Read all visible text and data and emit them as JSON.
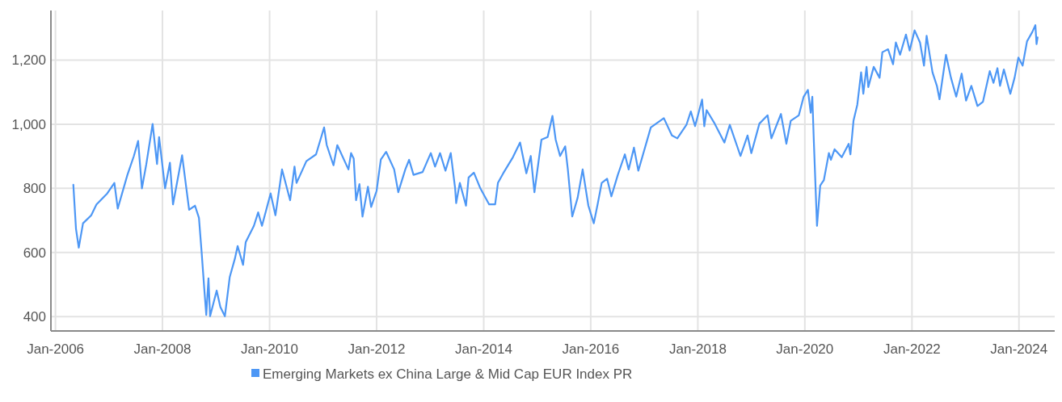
{
  "chart_data": {
    "type": "line",
    "legend": "bottom",
    "grid": true,
    "xlim": [
      "2005-12-01",
      "2024-09-01"
    ],
    "ylim": [
      355,
      1355
    ],
    "yticks": [
      400,
      600,
      800,
      {
        "value": 1000,
        "label": "1,000"
      },
      {
        "value": 1200,
        "label": "1,200"
      }
    ],
    "xticks": [
      {
        "value": "2006-01-01",
        "label": "Jan-2006"
      },
      {
        "value": "2008-01-01",
        "label": "Jan-2008"
      },
      {
        "value": "2010-01-01",
        "label": "Jan-2010"
      },
      {
        "value": "2012-01-01",
        "label": "Jan-2012"
      },
      {
        "value": "2014-01-01",
        "label": "Jan-2014"
      },
      {
        "value": "2016-01-01",
        "label": "Jan-2016"
      },
      {
        "value": "2018-01-01",
        "label": "Jan-2018"
      },
      {
        "value": "2020-01-01",
        "label": "Jan-2020"
      },
      {
        "value": "2022-01-01",
        "label": "Jan-2022"
      },
      {
        "value": "2024-01-01",
        "label": "Jan-2024"
      }
    ],
    "x": [
      "2006-05-03",
      "2006-05-21",
      "2006-06-09",
      "2006-07-08",
      "2006-09-02",
      "2006-10-08",
      "2006-12-20",
      "2007-02-07",
      "2007-03-02",
      "2007-05-07",
      "2007-06-20",
      "2007-07-19",
      "2007-08-14",
      "2007-09-13",
      "2007-10-26",
      "2007-11-25",
      "2007-12-09",
      "2008-01-19",
      "2008-02-21",
      "2008-03-13",
      "2008-05-14",
      "2008-07-01",
      "2008-08-10",
      "2008-09-06",
      "2008-09-24",
      "2008-10-12",
      "2008-10-26",
      "2008-11-10",
      "2008-11-21",
      "2009-01-05",
      "2009-01-30",
      "2009-03-02",
      "2009-04-04",
      "2009-05-10",
      "2009-05-28",
      "2009-07-04",
      "2009-07-22",
      "2009-09-16",
      "2009-10-15",
      "2009-11-10",
      "2010-01-08",
      "2010-02-10",
      "2010-03-27",
      "2010-05-21",
      "2010-06-20",
      "2010-07-04",
      "2010-09-09",
      "2010-11-14",
      "2011-01-08",
      "2011-01-26",
      "2011-03-13",
      "2011-04-08",
      "2011-06-23",
      "2011-07-11",
      "2011-07-29",
      "2011-08-14",
      "2011-09-06",
      "2011-09-27",
      "2011-11-03",
      "2011-11-25",
      "2012-01-01",
      "2012-01-30",
      "2012-03-06",
      "2012-04-30",
      "2012-05-28",
      "2012-07-15",
      "2012-08-10",
      "2012-09-09",
      "2012-11-10",
      "2013-01-05",
      "2013-02-03",
      "2013-03-09",
      "2013-04-15",
      "2013-05-21",
      "2013-06-20",
      "2013-06-27",
      "2013-07-22",
      "2013-09-02",
      "2013-09-20",
      "2013-10-26",
      "2013-12-09",
      "2014-02-07",
      "2014-03-20",
      "2014-04-08",
      "2014-05-14",
      "2014-07-19",
      "2014-09-06",
      "2014-10-19",
      "2014-11-18",
      "2014-12-13",
      "2015-01-30",
      "2015-03-13",
      "2015-04-15",
      "2015-05-07",
      "2015-06-06",
      "2015-07-11",
      "2015-07-29",
      "2015-08-28",
      "2015-10-04",
      "2015-11-07",
      "2015-12-16",
      "2016-01-22",
      "2016-02-17",
      "2016-03-16",
      "2016-04-22",
      "2016-05-21",
      "2016-07-04",
      "2016-08-21",
      "2016-09-16",
      "2016-10-22",
      "2016-11-21",
      "2017-02-14",
      "2017-05-14",
      "2017-07-08",
      "2017-08-14",
      "2017-10-15",
      "2017-11-14",
      "2017-12-13",
      "2018-01-30",
      "2018-02-14",
      "2018-03-02",
      "2018-04-26",
      "2018-07-01",
      "2018-08-07",
      "2018-10-19",
      "2018-12-06",
      "2019-01-01",
      "2019-02-25",
      "2019-04-22",
      "2019-05-18",
      "2019-07-22",
      "2019-08-28",
      "2019-09-27",
      "2019-11-21",
      "2019-12-24",
      "2020-01-22",
      "2020-02-10",
      "2020-02-21",
      "2020-03-02",
      "2020-03-24",
      "2020-04-15",
      "2020-05-10",
      "2020-06-13",
      "2020-06-27",
      "2020-07-22",
      "2020-09-09",
      "2020-10-26",
      "2020-11-07",
      "2020-11-28",
      "2020-12-24",
      "2021-01-19",
      "2021-02-03",
      "2021-02-25",
      "2021-03-09",
      "2021-04-15",
      "2021-05-25",
      "2021-06-13",
      "2021-07-22",
      "2021-08-25",
      "2021-09-13",
      "2021-10-12",
      "2021-11-21",
      "2021-12-16",
      "2022-01-19",
      "2022-02-25",
      "2022-03-24",
      "2022-04-11",
      "2022-05-21",
      "2022-06-20",
      "2022-07-08",
      "2022-08-21",
      "2022-09-24",
      "2022-10-30",
      "2022-12-06",
      "2023-01-05",
      "2023-02-10",
      "2023-03-24",
      "2023-04-30",
      "2023-06-16",
      "2023-07-11",
      "2023-08-07",
      "2023-08-25",
      "2023-09-20",
      "2023-11-03",
      "2023-12-02",
      "2023-12-28",
      "2024-01-26",
      "2024-02-25",
      "2024-04-01",
      "2024-04-22",
      "2024-04-30",
      "2024-05-07"
    ],
    "series": [
      {
        "name": "Emerging Markets ex China Large & Mid Cap EUR Index PR",
        "color": "#4d97f5",
        "values": [
          811,
          674,
          615,
          691,
          716,
          750,
          784,
          817,
          737,
          842,
          901,
          948,
          800,
          876,
          1001,
          876,
          960,
          800,
          880,
          750,
          903,
          733,
          746,
          708,
          603,
          489,
          405,
          519,
          401,
          481,
          430,
          401,
          523,
          582,
          620,
          561,
          632,
          683,
          725,
          683,
          784,
          716,
          859,
          763,
          868,
          817,
          885,
          906,
          990,
          935,
          872,
          935,
          859,
          910,
          893,
          763,
          813,
          712,
          805,
          742,
          792,
          890,
          914,
          859,
          788,
          859,
          889,
          842,
          851,
          910,
          868,
          910,
          855,
          910,
          800,
          754,
          817,
          746,
          834,
          849,
          800,
          750,
          750,
          817,
          847,
          897,
          943,
          847,
          901,
          788,
          952,
          960,
          1026,
          952,
          901,
          931,
          859,
          712,
          771,
          859,
          746,
          691,
          750,
          817,
          830,
          775,
          842,
          906,
          859,
          927,
          855,
          990,
          1019,
          965,
          956,
          998,
          1040,
          994,
          1077,
          994,
          1044,
          1002,
          943,
          998,
          901,
          965,
          910,
          1002,
          1028,
          956,
          1032,
          939,
          1011,
          1028,
          1086,
          1107,
          1036,
          1086,
          952,
          683,
          809,
          826,
          910,
          889,
          922,
          897,
          939,
          906,
          1011,
          1061,
          1162,
          1095,
          1179,
          1116,
          1179,
          1145,
          1225,
          1234,
          1187,
          1255,
          1217,
          1280,
          1230,
          1293,
          1255,
          1183,
          1276,
          1162,
          1120,
          1078,
          1217,
          1145,
          1086,
          1158,
          1074,
          1120,
          1057,
          1070,
          1166,
          1129,
          1175,
          1120,
          1171,
          1095,
          1145,
          1208,
          1183,
          1259,
          1288,
          1309,
          1250,
          1271
        ]
      }
    ]
  }
}
